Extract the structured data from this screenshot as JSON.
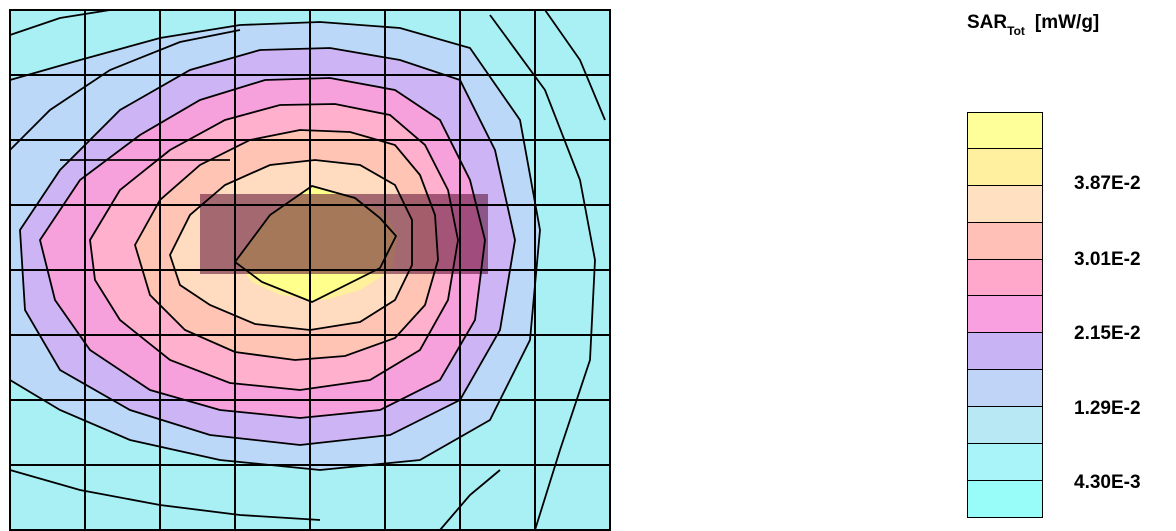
{
  "chart_data": {
    "type": "heatmap",
    "title": "",
    "quantity": "SAR",
    "quantity_subscript": "Tot",
    "unit": "[mW/g]",
    "legend_ticks": [
      "3.87E-2",
      "3.01E-2",
      "2.15E-2",
      "1.29E-2",
      "4.30E-3"
    ],
    "color_levels": [
      "#ffff99",
      "#fff0a0",
      "#ffe0c0",
      "#ffc0b8",
      "#ffa8cc",
      "#f8a0e0",
      "#c8b4f4",
      "#c0d4f8",
      "#b8e8f4",
      "#a8f4f8",
      "#98fcf8"
    ],
    "grid": true,
    "peak_region": "center-left",
    "overlay": "dark horizontal bar across the peak"
  }
}
